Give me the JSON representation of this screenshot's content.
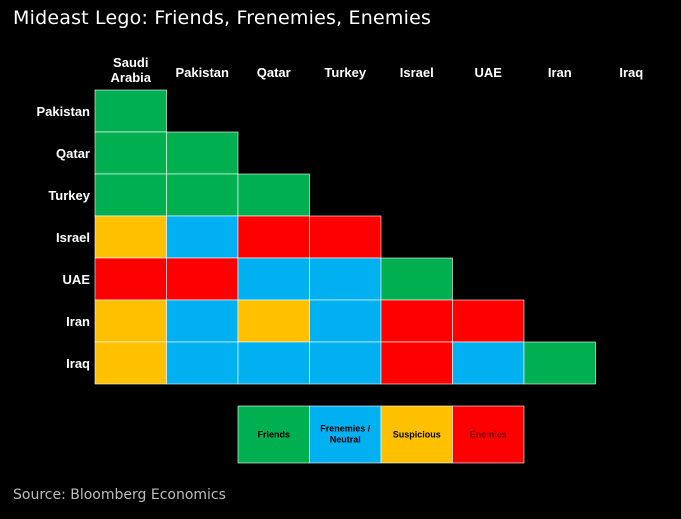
{
  "title": "Mideast Lego: Friends, Frenemies, Enemies",
  "source": "Source: Bloomberg Economics",
  "chart_data": {
    "type": "heatmap",
    "columns": [
      [
        "Saudi",
        "Arabia"
      ],
      [
        "Pakistan"
      ],
      [
        "Qatar"
      ],
      [
        "Turkey"
      ],
      [
        "Israel"
      ],
      [
        "UAE"
      ],
      [
        "Iran"
      ],
      [
        "Iraq"
      ]
    ],
    "rows": [
      "Pakistan",
      "Qatar",
      "Turkey",
      "Israel",
      "UAE",
      "Iran",
      "Iraq"
    ],
    "categories": {
      "F": {
        "label": [
          "Friends"
        ],
        "color": "#00b050",
        "text_color": "#000000"
      },
      "N": {
        "label": [
          "Frenemies /",
          "Neutral"
        ],
        "color": "#00b0f0",
        "text_color": "#000000"
      },
      "S": {
        "label": [
          "Suspicious"
        ],
        "color": "#ffc000",
        "text_color": "#000000"
      },
      "E": {
        "label": [
          "Enemies"
        ],
        "color": "#ff0000",
        "text_color": "#7a0000"
      }
    },
    "legend_order": [
      "F",
      "N",
      "S",
      "E"
    ],
    "cells": [
      [
        "F"
      ],
      [
        "F",
        "F"
      ],
      [
        "F",
        "F",
        "F"
      ],
      [
        "S",
        "N",
        "E",
        "E"
      ],
      [
        "E",
        "E",
        "N",
        "N",
        "F"
      ],
      [
        "S",
        "N",
        "S",
        "N",
        "E",
        "E"
      ],
      [
        "S",
        "N",
        "N",
        "N",
        "E",
        "N",
        "F"
      ]
    ]
  }
}
